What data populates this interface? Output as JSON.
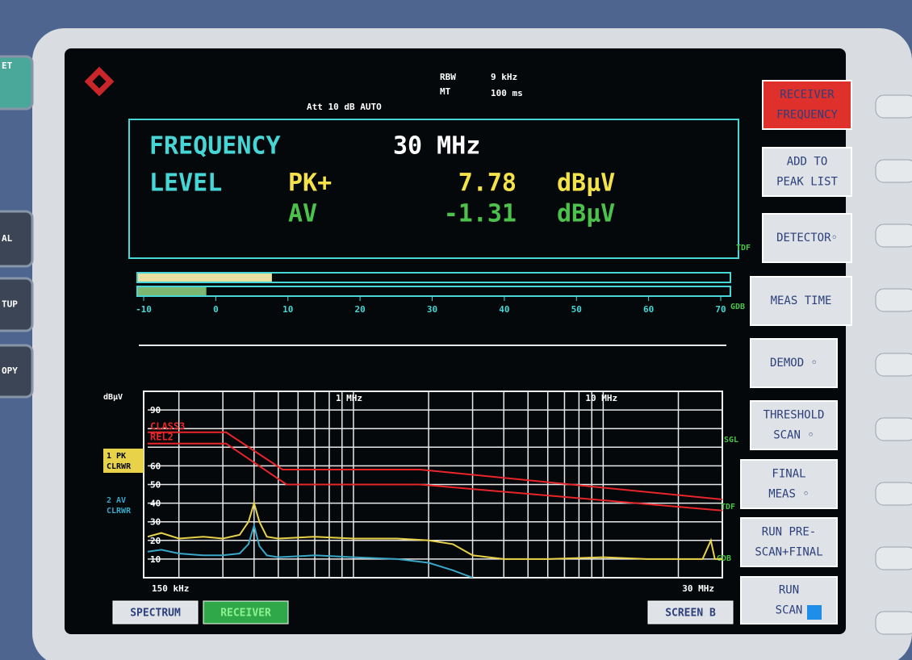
{
  "hardware_keys": [
    "ET",
    "AL",
    "TUP",
    "OPY"
  ],
  "header": {
    "rbw_label": "RBW",
    "rbw": "9 kHz",
    "mt_label": "MT",
    "mt": "100 ms",
    "att": "Att 10 dB AUTO"
  },
  "readout": {
    "frequency_label": "FREQUENCY",
    "frequency": "30 MHz",
    "level_label": "LEVEL",
    "pk_label": "PK+",
    "pk_value": 7.78,
    "pk_unit": "dBµV",
    "av_label": "AV",
    "av_value": -1.31,
    "av_unit": "dBµV",
    "tdf": "TDF"
  },
  "bargraph": {
    "xlim": [
      -10,
      70
    ],
    "ticks": [
      -10,
      0,
      10,
      20,
      30,
      40,
      50,
      60,
      70
    ],
    "gdb": "GDB"
  },
  "softkeys": [
    [
      "RECEIVER",
      "FREQUENCY"
    ],
    [
      "ADD TO",
      "PEAK LIST"
    ],
    [
      "DETECTOR◦"
    ],
    [
      "MEAS TIME"
    ],
    [
      "DEMOD ◦"
    ],
    [
      "THRESHOLD",
      "SCAN ◦"
    ],
    [
      "FINAL",
      "MEAS ◦"
    ],
    [
      "RUN PRE-",
      "SCAN+FINAL"
    ],
    [
      "RUN",
      "SCAN"
    ]
  ],
  "tabs": [
    "SPECTRUM",
    "RECEIVER",
    "SCREEN B"
  ],
  "chart_data": {
    "type": "line",
    "y_unit": "dBµV",
    "xscale": "log",
    "xlim": [
      150000,
      30000000
    ],
    "x_start_label": "150 kHz",
    "x_stop_label": "30 MHz",
    "xticks": [
      {
        "value": 1000000,
        "label": "1 MHz"
      },
      {
        "value": 10000000,
        "label": "10 MHz"
      }
    ],
    "x_minor_ticks": [
      200000,
      300000,
      400000,
      500000,
      600000,
      700000,
      800000,
      900000,
      2000000,
      3000000,
      4000000,
      5000000,
      6000000,
      7000000,
      8000000,
      9000000,
      20000000
    ],
    "ylim": [
      0,
      100
    ],
    "yticks": [
      10,
      20,
      30,
      40,
      50,
      60,
      90
    ],
    "y_minor_ticks": [
      70,
      80
    ],
    "grid": true,
    "side_labels": {
      "sgl": "SGL",
      "tdf": "TDF",
      "gdb": "GDB"
    },
    "series": [
      {
        "name": "CLASS3",
        "color": "#e8262a",
        "x": [
          150000,
          309000,
          520000,
          1850000,
          30000000
        ],
        "values": [
          78,
          78,
          58,
          58,
          42
        ]
      },
      {
        "name": "REL2",
        "color": "#e8262a",
        "x": [
          150000,
          309000,
          540000,
          1850000,
          30000000
        ],
        "values": [
          72,
          72,
          50,
          50,
          36
        ]
      },
      {
        "name": "1 PK",
        "mode": "CLRWR",
        "color": "#e8d24a",
        "x": [
          150000,
          170000,
          200000,
          250000,
          300000,
          350000,
          380000,
          400000,
          420000,
          450000,
          500000,
          700000,
          1000000,
          1500000,
          2000000,
          2500000,
          3000000,
          4000000,
          6000000,
          10000000,
          15000000,
          20000000,
          25000000,
          27000000,
          28000000,
          30000000
        ],
        "values": [
          22,
          24,
          21,
          22,
          21,
          23,
          30,
          40,
          30,
          22,
          21,
          22,
          21,
          21,
          20,
          18,
          12,
          10,
          10,
          11,
          10,
          10,
          10,
          20,
          10,
          10
        ]
      },
      {
        "name": "2 AV",
        "mode": "CLRWR",
        "color": "#3aa6c8",
        "x": [
          150000,
          170000,
          200000,
          250000,
          300000,
          350000,
          380000,
          400000,
          420000,
          450000,
          500000,
          700000,
          1000000,
          1500000,
          2000000,
          2500000,
          3000000
        ],
        "values": [
          14,
          15,
          13,
          12,
          12,
          13,
          18,
          28,
          17,
          12,
          11,
          12,
          11,
          10,
          8,
          4,
          0
        ]
      }
    ]
  }
}
